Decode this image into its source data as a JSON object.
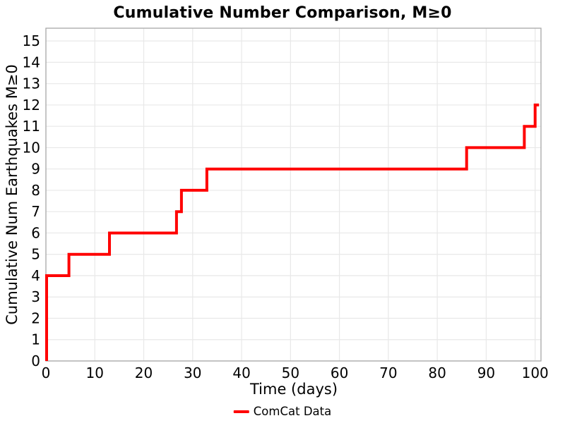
{
  "chart_data": {
    "type": "line",
    "line_style": "step-post",
    "title": "Cumulative Number Comparison, M≥0",
    "xlabel": "Time (days)",
    "ylabel": "Cumulative Num Earthquakes M≥0",
    "xlim": [
      0,
      101.2
    ],
    "ylim": [
      0,
      15.6
    ],
    "xticks": [
      0,
      10,
      20,
      30,
      40,
      50,
      60,
      70,
      80,
      90,
      100
    ],
    "yticks": [
      0,
      1,
      2,
      3,
      4,
      5,
      6,
      7,
      8,
      9,
      10,
      11,
      12,
      13,
      14,
      15
    ],
    "grid": true,
    "grid_color": "#e8e8e8",
    "spine_color": "#a8a8a8",
    "background": "#ffffff",
    "legend_position": "bottom-center",
    "series": [
      {
        "name": "ComCat Data",
        "color": "#ff0000",
        "line_width": 4,
        "start_day": 0.15,
        "start_value": 0,
        "end_day": 100.8,
        "steps": [
          {
            "day": 0.15,
            "cumulative": 4
          },
          {
            "day": 4.7,
            "cumulative": 5
          },
          {
            "day": 13.0,
            "cumulative": 6
          },
          {
            "day": 26.7,
            "cumulative": 7
          },
          {
            "day": 27.7,
            "cumulative": 8
          },
          {
            "day": 32.9,
            "cumulative": 9
          },
          {
            "day": 86.0,
            "cumulative": 10
          },
          {
            "day": 97.8,
            "cumulative": 11
          },
          {
            "day": 100.0,
            "cumulative": 12
          }
        ]
      }
    ]
  }
}
